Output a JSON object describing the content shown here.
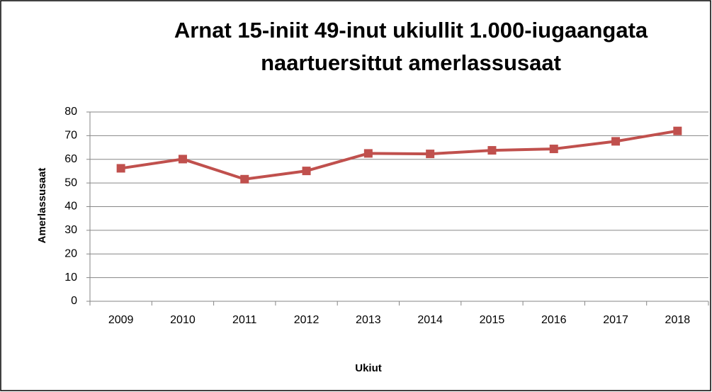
{
  "chart_data": {
    "type": "line",
    "title": "Arnat 15-iniit 49-inut ukiullit 1.000-iugaangata naartuersittut amerlassusaat",
    "x_label": "Ukiut",
    "y_label": "Amerlassusaat",
    "categories": [
      "2009",
      "2010",
      "2011",
      "2012",
      "2013",
      "2014",
      "2015",
      "2016",
      "2017",
      "2018"
    ],
    "values": [
      56.2,
      60.1,
      51.6,
      55.1,
      62.5,
      62.3,
      63.8,
      64.4,
      67.6,
      72.0
    ],
    "color": "#c0504d",
    "ylim": [
      0,
      80
    ],
    "yticks": [
      0,
      10,
      20,
      30,
      40,
      50,
      60,
      70,
      80
    ],
    "grid": true
  }
}
